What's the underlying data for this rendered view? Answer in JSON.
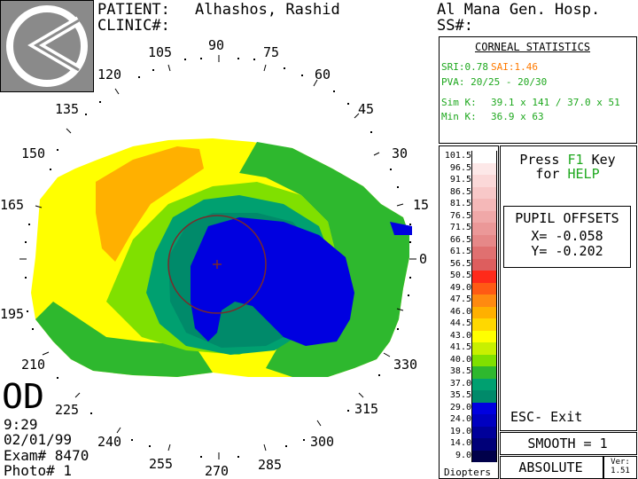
{
  "header": {
    "patient_label": "PATIENT:",
    "patient_name": "Alhashos, Rashid",
    "clinic_label": "CLINIC#:",
    "hospital": "Al Mana Gen. Hosp.",
    "ss_label": "SS#:"
  },
  "logo": {
    "icon": "keratometer-logo-icon"
  },
  "stats": {
    "title": "CORNEAL STATISTICS",
    "sri": "SRI:0.78",
    "sai": "SAI:1.46",
    "pva": "PVA: 20/25 - 20/30",
    "simk_label": "Sim K:",
    "simk_value": "39.1 x 141 / 37.0 x 51",
    "mink_label": "Min K:",
    "mink_value": "36.9 x 63",
    "color_sri": "#1ea81e",
    "color_sai": "#ff7a00"
  },
  "angles": [
    "90",
    "75",
    "60",
    "45",
    "30",
    "15",
    "0",
    "330",
    "315",
    "300",
    "285",
    "270",
    "255",
    "240",
    "225",
    "210",
    "195",
    "165",
    "150",
    "135",
    "120",
    "105"
  ],
  "legend": {
    "values": [
      "101.5",
      "96.5",
      "91.5",
      "86.5",
      "81.5",
      "76.5",
      "71.5",
      "66.5",
      "61.5",
      "56.5",
      "50.5",
      "49.0",
      "47.5",
      "46.0",
      "44.5",
      "43.0",
      "41.5",
      "40.0",
      "38.5",
      "37.0",
      "35.5",
      "29.0",
      "24.0",
      "19.0",
      "14.0",
      "9.0"
    ],
    "colors": [
      "#ffffff",
      "#fde8e8",
      "#fbd8d8",
      "#f8c8c8",
      "#f5b8b8",
      "#f0a8a8",
      "#eb9898",
      "#e68888",
      "#e07070",
      "#dd5e5e",
      "#ff2a1a",
      "#ff5a14",
      "#ff8a10",
      "#ffb000",
      "#ffd800",
      "#ffff00",
      "#c8f000",
      "#80e000",
      "#2eb82e",
      "#00a070",
      "#008a6a",
      "#0000e0",
      "#0000c0",
      "#00009a",
      "#000078",
      "#00004a"
    ],
    "unit": "Diopters"
  },
  "help": {
    "line1": "Press",
    "key": "F1",
    "line1b": "Key",
    "line2": "for",
    "helpword": "HELP"
  },
  "pupil": {
    "title": "PUPIL OFFSETS",
    "x": "X= -0.058",
    "y": "Y= -0.202"
  },
  "esc": {
    "label": "ESC- Exit"
  },
  "smooth": {
    "label": "SMOOTH = 1"
  },
  "absolute": {
    "label": "ABSOLUTE"
  },
  "version": {
    "label": "Ver:",
    "value": "1.51"
  },
  "exam": {
    "eye": "OD",
    "time": "9:29",
    "date": "02/01/99",
    "exam": "Exam# 8470",
    "photo": "Photo# 1"
  }
}
